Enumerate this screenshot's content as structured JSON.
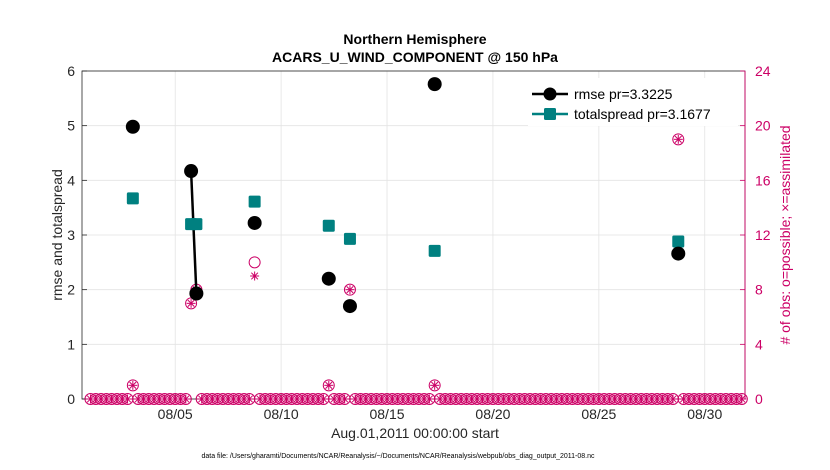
{
  "chart_data": {
    "type": "scatter",
    "title": "Northern Hemisphere",
    "subtitle": "ACARS_U_WIND_COMPONENT @ 150 hPa",
    "xlabel": "Aug.01,2011 00:00:00 start",
    "ylabel_left": "rmse and totalspread",
    "ylabel_right": "# of obs: o=possible; ×=assimilated",
    "footer": "data file: /Users/gharamti/Documents/NCAR/Reanalysis/~/Documents/NCAR/Reanalysis/webpub/obs_diag_output_2011-08.nc",
    "xlim": [
      0.6,
      31.9
    ],
    "ylim_left": [
      0,
      6
    ],
    "ylim_right": [
      0,
      24
    ],
    "x_ticks": [
      {
        "x": 5,
        "label": "08/05"
      },
      {
        "x": 10,
        "label": "08/10"
      },
      {
        "x": 15,
        "label": "08/15"
      },
      {
        "x": 20,
        "label": "08/20"
      },
      {
        "x": 25,
        "label": "08/25"
      },
      {
        "x": 30,
        "label": "08/30"
      }
    ],
    "y_ticks_left": [
      0,
      1,
      2,
      3,
      4,
      5,
      6
    ],
    "y_ticks_right": [
      0,
      4,
      8,
      12,
      16,
      20,
      24
    ],
    "grid": true,
    "legend_position": "top-right",
    "colors": {
      "rmse": "#000000",
      "totalspread": "#008080",
      "obs": "#cc0066"
    },
    "series": [
      {
        "name": "rmse pr=3.3225",
        "axis": "left",
        "points": [
          {
            "x": 3.0,
            "y": 4.98
          },
          {
            "x": 5.75,
            "y": 4.17
          },
          {
            "x": 6.0,
            "y": 1.93
          },
          {
            "x": 8.75,
            "y": 3.22
          },
          {
            "x": 12.25,
            "y": 2.2
          },
          {
            "x": 13.25,
            "y": 1.7
          },
          {
            "x": 17.25,
            "y": 5.76
          },
          {
            "x": 28.75,
            "y": 2.66
          }
        ],
        "lines": [
          [
            1,
            2
          ]
        ]
      },
      {
        "name": "totalspread pr=3.1677",
        "axis": "left",
        "points": [
          {
            "x": 3.0,
            "y": 3.67
          },
          {
            "x": 5.75,
            "y": 3.2
          },
          {
            "x": 6.0,
            "y": 3.2
          },
          {
            "x": 8.75,
            "y": 3.61
          },
          {
            "x": 12.25,
            "y": 3.17
          },
          {
            "x": 13.25,
            "y": 2.93
          },
          {
            "x": 17.25,
            "y": 2.71
          },
          {
            "x": 28.75,
            "y": 2.88
          }
        ],
        "lines": []
      }
    ],
    "obs_possible": [
      {
        "x": 3.0,
        "y": 1
      },
      {
        "x": 5.75,
        "y": 7
      },
      {
        "x": 6.0,
        "y": 8
      },
      {
        "x": 8.75,
        "y": 10
      },
      {
        "x": 12.25,
        "y": 1
      },
      {
        "x": 13.25,
        "y": 8
      },
      {
        "x": 17.25,
        "y": 1
      },
      {
        "x": 28.75,
        "y": 19
      }
    ],
    "obs_assimilated": [
      {
        "x": 3.0,
        "y": 1
      },
      {
        "x": 5.75,
        "y": 7
      },
      {
        "x": 6.0,
        "y": 8
      },
      {
        "x": 8.75,
        "y": 9
      },
      {
        "x": 12.25,
        "y": 1
      },
      {
        "x": 13.25,
        "y": 8
      },
      {
        "x": 17.25,
        "y": 1
      },
      {
        "x": 28.75,
        "y": 19
      }
    ]
  }
}
